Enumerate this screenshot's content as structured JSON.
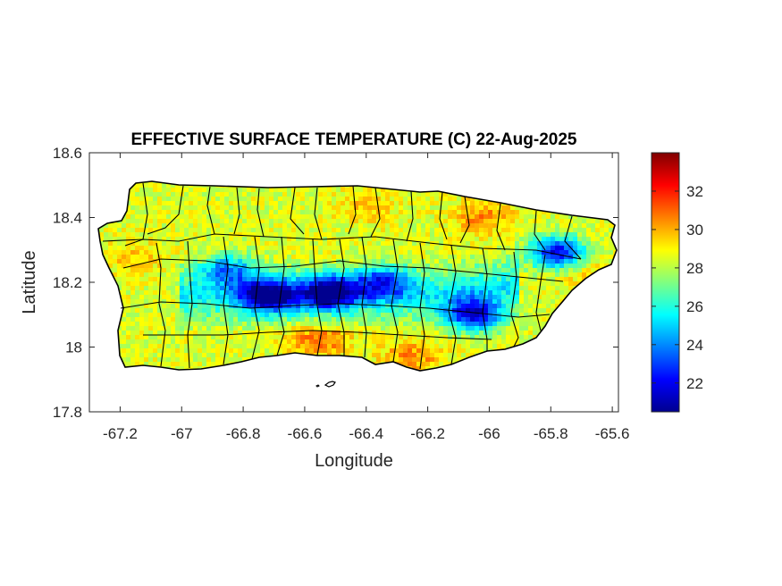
{
  "title": "EFFECTIVE SURFACE TEMPERATURE (C) 22-Aug-2025",
  "xlabel": "Longitude",
  "ylabel": "Latitude",
  "x_ticks": [
    "-67.2",
    "-67",
    "-66.8",
    "-66.6",
    "-66.4",
    "-66.2",
    "-66",
    "-65.8",
    "-65.6"
  ],
  "y_ticks": [
    "18.6",
    "18.4",
    "18.2",
    "18",
    "17.8"
  ],
  "colorbar_ticks": [
    "32",
    "30",
    "28",
    "26",
    "24",
    "22"
  ],
  "map_data": {
    "type": "heatmap",
    "region": "Puerto Rico",
    "variable": "Effective surface temperature",
    "units": "C",
    "date": "22-Aug-2025",
    "xlim": [
      -67.3,
      -65.58
    ],
    "ylim": [
      17.8,
      18.6
    ],
    "color_limits": [
      20.5,
      34
    ],
    "colormap": "jet",
    "colormap_colors": [
      "#00008f",
      "#0000ff",
      "#0080ff",
      "#00ffff",
      "#80ff80",
      "#ffff00",
      "#ff8000",
      "#ff0000",
      "#800000"
    ],
    "x_ticks": [
      -67.2,
      -67,
      -66.8,
      -66.6,
      -66.4,
      -66.2,
      -66,
      -65.8,
      -65.6
    ],
    "y_ticks": [
      18.6,
      18.4,
      18.2,
      18,
      17.8
    ],
    "colorbar_ticks": [
      32,
      30,
      28,
      26,
      24,
      22
    ],
    "outline_color": "#000000",
    "municipal_boundaries": true,
    "cool_spots": [
      {
        "lon": -66.72,
        "lat": 18.16,
        "temp": 21.5
      },
      {
        "lon": -66.52,
        "lat": 18.17,
        "temp": 21.5
      },
      {
        "lon": -66.05,
        "lat": 18.1,
        "temp": 22.0
      },
      {
        "lon": -65.78,
        "lat": 18.29,
        "temp": 22.0
      },
      {
        "lon": -66.85,
        "lat": 18.24,
        "temp": 24.5
      },
      {
        "lon": -66.35,
        "lat": 18.2,
        "temp": 24.0
      }
    ],
    "warm_spots": [
      {
        "lon": -66.55,
        "lat": 18.02,
        "temp": 31.5
      },
      {
        "lon": -66.25,
        "lat": 17.97,
        "temp": 31.0
      },
      {
        "lon": -66.02,
        "lat": 18.4,
        "temp": 31.0
      },
      {
        "lon": -66.4,
        "lat": 18.43,
        "temp": 30.0
      },
      {
        "lon": -67.15,
        "lat": 18.28,
        "temp": 30.0
      },
      {
        "lon": -65.68,
        "lat": 18.22,
        "temp": 30.0
      }
    ],
    "background_temp": 28.5
  }
}
